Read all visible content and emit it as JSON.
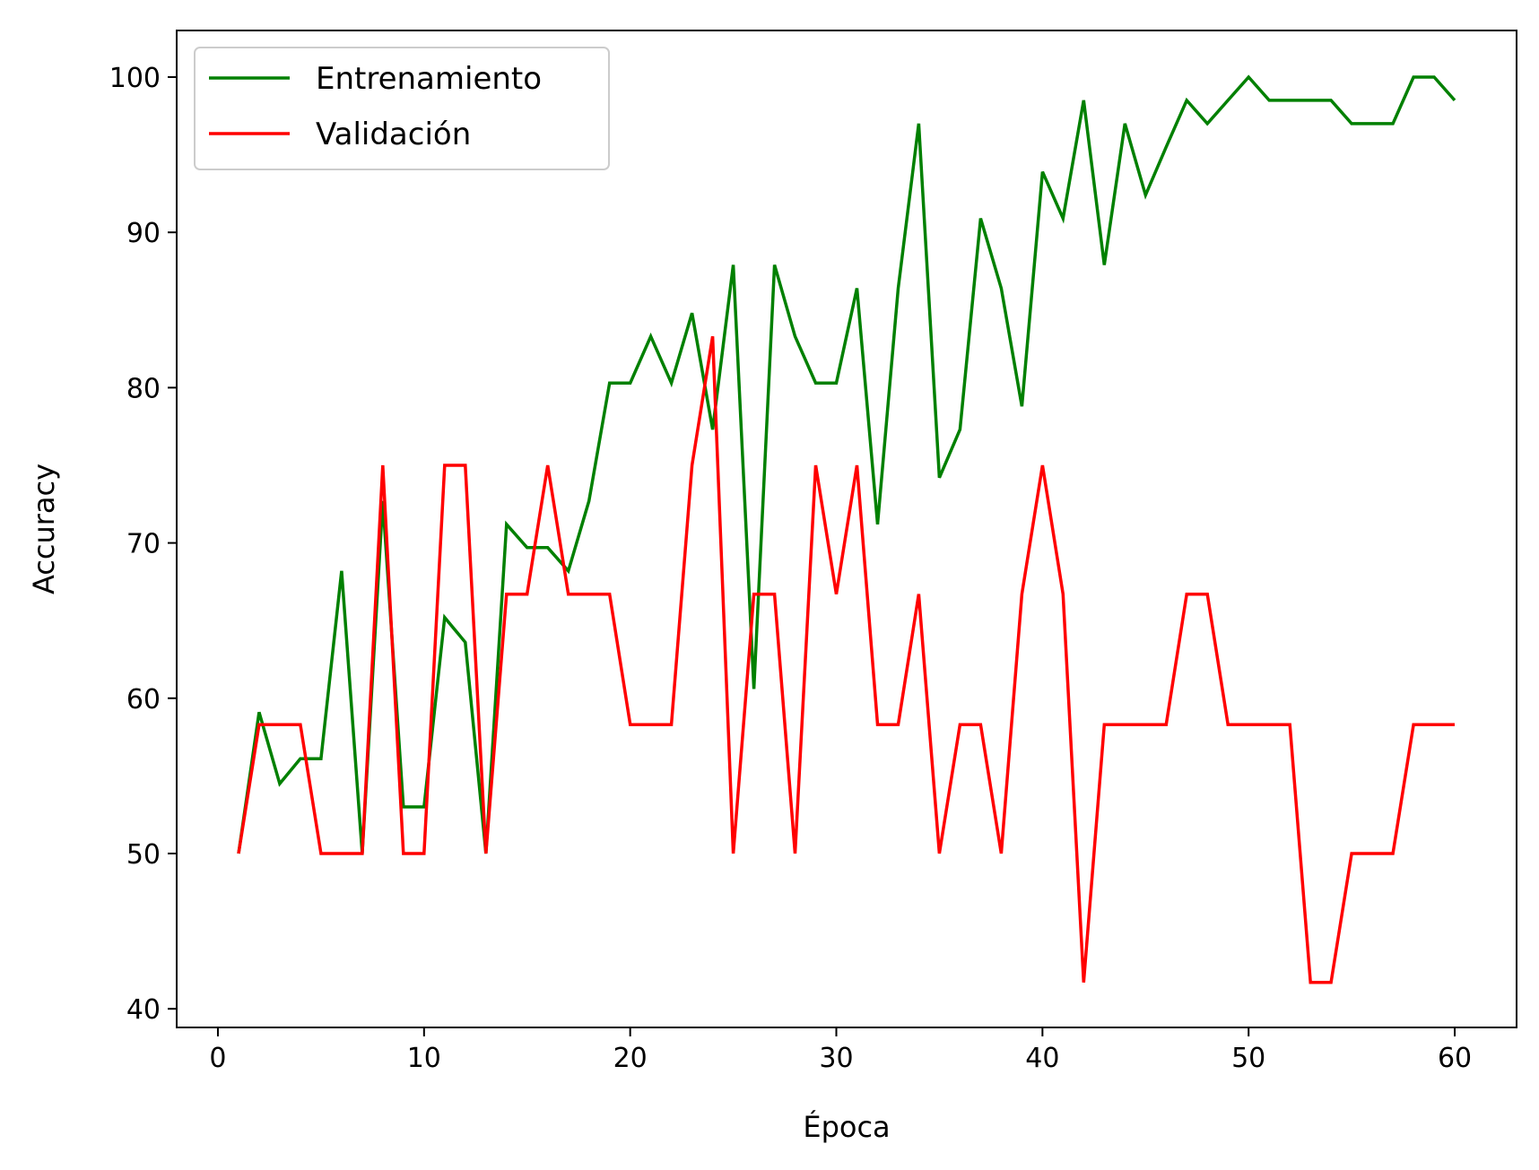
{
  "chart_data": {
    "type": "line",
    "title": "",
    "xlabel": "Época",
    "ylabel": "Accuracy",
    "xlim": [
      -2,
      63
    ],
    "ylim": [
      38.8,
      103
    ],
    "xticks": [
      0,
      10,
      20,
      30,
      40,
      50,
      60
    ],
    "yticks": [
      40,
      50,
      60,
      70,
      80,
      90,
      100
    ],
    "grid": false,
    "legend_position": "upper left",
    "x": [
      1,
      2,
      3,
      4,
      5,
      6,
      7,
      8,
      9,
      10,
      11,
      12,
      13,
      14,
      15,
      16,
      17,
      18,
      19,
      20,
      21,
      22,
      23,
      24,
      25,
      26,
      27,
      28,
      29,
      30,
      31,
      32,
      33,
      34,
      35,
      36,
      37,
      38,
      39,
      40,
      41,
      42,
      43,
      44,
      45,
      46,
      47,
      48,
      49,
      50,
      51,
      52,
      53,
      54,
      55,
      56,
      57,
      58,
      59,
      60
    ],
    "series": [
      {
        "name": "Entrenamiento",
        "color": "#008000",
        "values": [
          50.0,
          59.1,
          54.5,
          56.1,
          56.1,
          68.2,
          50.0,
          72.7,
          53.0,
          53.0,
          65.2,
          63.6,
          50.0,
          71.2,
          69.7,
          69.7,
          68.2,
          72.7,
          80.3,
          80.3,
          83.3,
          80.3,
          84.8,
          77.3,
          87.9,
          60.6,
          87.9,
          83.3,
          80.3,
          80.3,
          86.4,
          71.2,
          86.4,
          97.0,
          74.2,
          77.3,
          90.9,
          86.4,
          78.8,
          93.9,
          90.9,
          98.5,
          87.9,
          97.0,
          92.4,
          95.5,
          98.5,
          97.0,
          98.5,
          100.0,
          98.5,
          98.5,
          98.5,
          98.5,
          97.0,
          97.0,
          97.0,
          100.0,
          100.0,
          98.5
        ]
      },
      {
        "name": "Validación",
        "color": "#ff0000",
        "values": [
          50.0,
          58.3,
          58.3,
          58.3,
          50.0,
          50.0,
          50.0,
          75.0,
          50.0,
          50.0,
          75.0,
          75.0,
          50.0,
          66.7,
          66.7,
          75.0,
          66.7,
          66.7,
          66.7,
          58.3,
          58.3,
          58.3,
          75.0,
          83.3,
          50.0,
          66.7,
          66.7,
          50.0,
          75.0,
          66.7,
          75.0,
          58.3,
          58.3,
          66.7,
          50.0,
          58.3,
          58.3,
          50.0,
          66.7,
          75.0,
          66.7,
          41.7,
          58.3,
          58.3,
          58.3,
          58.3,
          66.7,
          66.7,
          58.3,
          58.3,
          58.3,
          58.3,
          41.7,
          41.7,
          50.0,
          50.0,
          50.0,
          58.3,
          58.3,
          58.3
        ]
      }
    ]
  }
}
